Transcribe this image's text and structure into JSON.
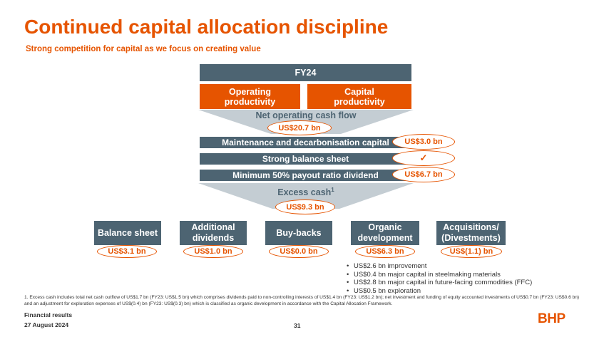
{
  "header": {
    "title": "Continued capital allocation discipline",
    "subtitle": "Strong competition for capital as we focus on creating value"
  },
  "flow": {
    "top_bar": "FY24",
    "operating_productivity": "Operating productivity",
    "capital_productivity": "Capital productivity",
    "net_operating_cash_flow": {
      "label": "Net operating cash flow",
      "value": "US$20.7 bn"
    },
    "priorities": [
      {
        "label": "Maintenance and decarbonisation capital",
        "value": "US$3.0 bn"
      },
      {
        "label": "Strong balance sheet",
        "value": "✓"
      },
      {
        "label": "Minimum 50% payout ratio dividend",
        "value": "US$6.7 bn"
      }
    ],
    "excess_cash": {
      "label": "Excess cash",
      "sup": "1",
      "value": "US$9.3 bn"
    },
    "allocations": [
      {
        "label": "Balance sheet",
        "value": "US$3.1 bn"
      },
      {
        "label": "Additional dividends",
        "value": "US$1.0 bn"
      },
      {
        "label": "Buy-backs",
        "value": "US$0.0 bn"
      },
      {
        "label": "Organic development",
        "value": "US$6.3 bn"
      },
      {
        "label": "Acquisitions/ (Divestments)",
        "value": "US$(1.1) bn"
      }
    ]
  },
  "organic_breakdown": [
    "US$2.6 bn improvement",
    "US$0.4 bn major capital in steelmaking materials",
    "US$2.8 bn major capital in future-facing commodities (FFC)",
    "US$0.5 bn exploration"
  ],
  "footnote": "1.  Excess cash includes total net cash outflow of US$1.7 bn (FY23: US$1.5 bn) which comprises dividends paid to non-controlling interests of US$1.4 bn (FY23: US$1.2 bn); net investment and funding of equity accounted investments of US$0.7 bn (FY23: US$0.6 bn) and an adjustment for exploration expenses of US$(0.4) bn (FY23: US$(0.3) bn) which is classified as organic development in accordance with the Capital Allocation Framework.",
  "footer": {
    "line1": "Financial results",
    "line2": "27 August 2024",
    "page": "31",
    "logo": "BHP"
  },
  "colors": {
    "accent": "#e65400",
    "slate": "#4d6472",
    "funnel": "#c4cdd3"
  }
}
